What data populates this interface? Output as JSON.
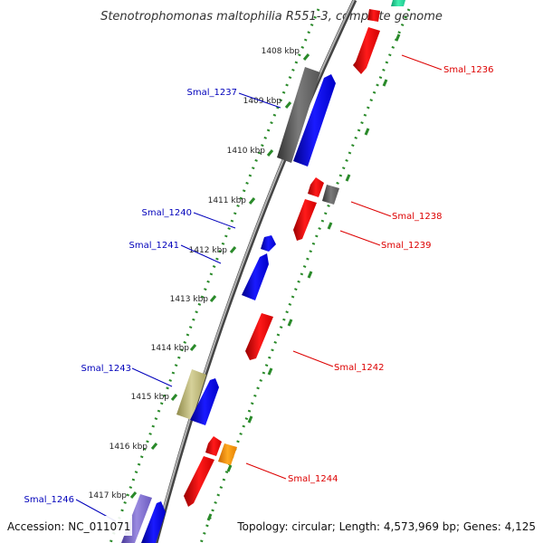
{
  "title": "Stenotrophomonas maltophilia R551-3, complete genome",
  "footer": {
    "accession": "Accession: NC_011071",
    "summary": "Topology: circular; Length: 4,573,969 bp; Genes: 4,125"
  },
  "colors": {
    "forward_label": "#0000bb",
    "reverse_label": "#dd0000",
    "backbone": "#8c8c8c",
    "inner_ruler": "#2a8a2a",
    "outer_ruler": "#2a8a2a"
  },
  "ticks": [
    "1408 kbp",
    "1409 kbp",
    "1410 kbp",
    "1411 kbp",
    "1412 kbp",
    "1413 kbp",
    "1414 kbp",
    "1415 kbp",
    "1416 kbp",
    "1417 kbp"
  ],
  "genes": [
    {
      "name": "Smal_1236",
      "strand": "reverse"
    },
    {
      "name": "Smal_1237",
      "strand": "forward"
    },
    {
      "name": "Smal_1238",
      "strand": "reverse"
    },
    {
      "name": "Smal_1239",
      "strand": "reverse"
    },
    {
      "name": "Smal_1240",
      "strand": "forward"
    },
    {
      "name": "Smal_1241",
      "strand": "forward"
    },
    {
      "name": "Smal_1242",
      "strand": "reverse"
    },
    {
      "name": "Smal_1243",
      "strand": "forward"
    },
    {
      "name": "Smal_1244",
      "strand": "reverse"
    },
    {
      "name": "Smal_1246",
      "strand": "forward"
    }
  ]
}
